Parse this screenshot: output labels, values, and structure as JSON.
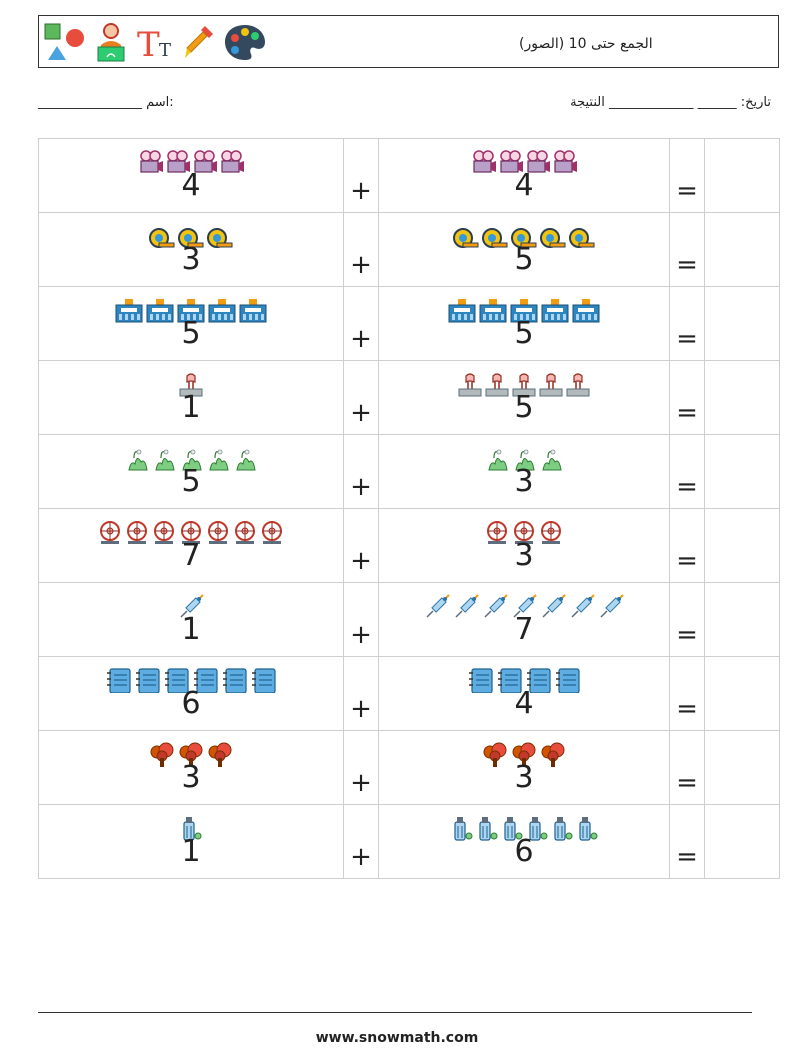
{
  "header": {
    "title": "الجمع حتى 10 (الصور)",
    "icons": [
      "shapes-icon",
      "teacher-icon",
      "text-size-icon",
      "eyedropper-icon",
      "palette-icon"
    ]
  },
  "meta": {
    "name_label": "اسم:",
    "name_blank": "________________",
    "date_label": "تاريخ:",
    "date_blank": "______",
    "result_label": "النتيجة",
    "result_blank": "_____________"
  },
  "operators": {
    "plus": "+",
    "equals": "="
  },
  "problems": [
    {
      "left_icon": "movie-camera-icon",
      "left": 4,
      "right_icon": "movie-camera-icon",
      "right": 4
    },
    {
      "left_icon": "tape-measure-icon",
      "left": 3,
      "right_icon": "tape-measure-icon",
      "right": 5
    },
    {
      "left_icon": "police-station-icon",
      "left": 5,
      "right_icon": "police-station-icon",
      "right": 5
    },
    {
      "left_icon": "pin-icon",
      "left": 1,
      "right_icon": "pin-icon",
      "right": 5
    },
    {
      "left_icon": "grass-sprout-icon",
      "left": 5,
      "right_icon": "grass-sprout-icon",
      "right": 3
    },
    {
      "left_icon": "ferris-wheel-icon",
      "left": 7,
      "right_icon": "ferris-wheel-icon",
      "right": 3
    },
    {
      "left_icon": "syringe-icon",
      "left": 1,
      "right_icon": "syringe-icon",
      "right": 7
    },
    {
      "left_icon": "notebook-icon",
      "left": 6,
      "right_icon": "notebook-icon",
      "right": 4
    },
    {
      "left_icon": "tree-icon",
      "left": 3,
      "right_icon": "tree-icon",
      "right": 3
    },
    {
      "left_icon": "bottle-icon",
      "left": 1,
      "right_icon": "bottle-icon",
      "right": 6
    }
  ],
  "footer": {
    "website": "www.snowmath.com"
  },
  "colors": {
    "border": "#cfcfcf",
    "text": "#222222"
  }
}
